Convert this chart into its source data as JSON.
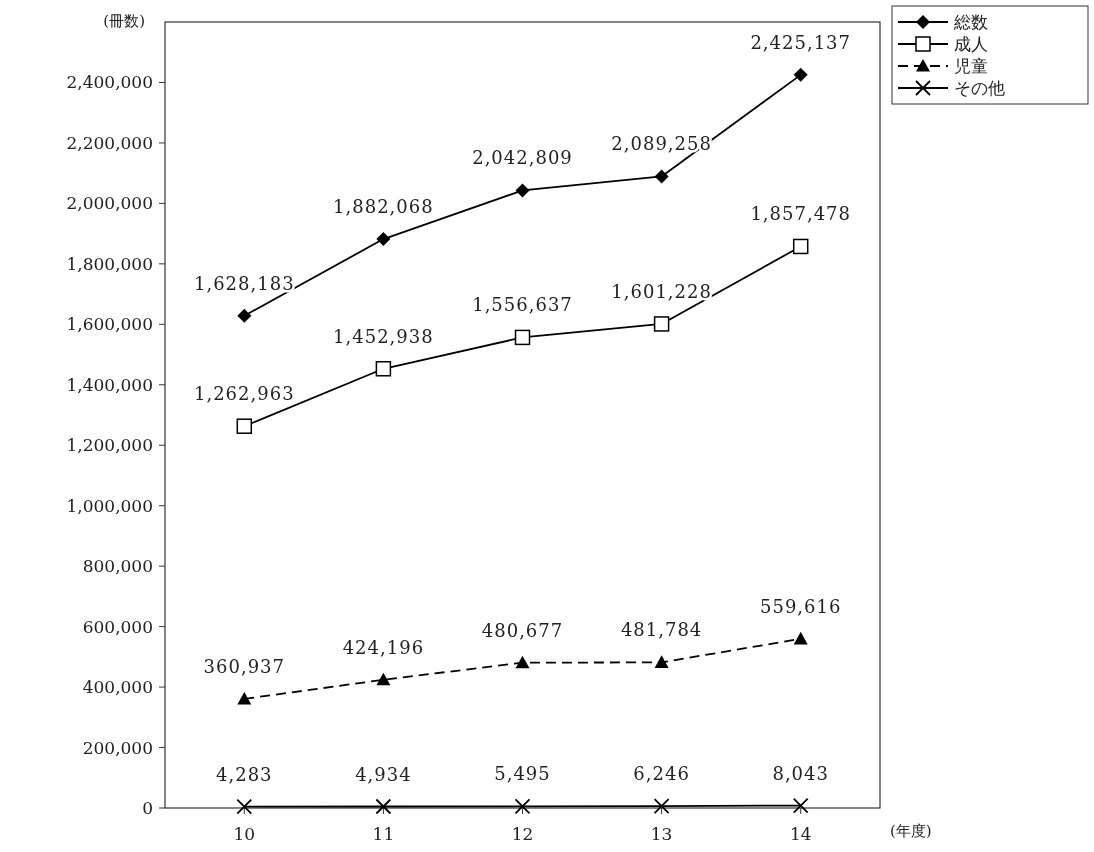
{
  "chart_data": {
    "type": "line",
    "ylabel": "(冊数)",
    "xlabel": "(年度)",
    "categories": [
      "10",
      "11",
      "12",
      "13",
      "14"
    ],
    "ylim": [
      0,
      2600000
    ],
    "yticks": [
      {
        "value": 0,
        "label": "0"
      },
      {
        "value": 200000,
        "label": "200,000"
      },
      {
        "value": 400000,
        "label": "400,000"
      },
      {
        "value": 600000,
        "label": "600,000"
      },
      {
        "value": 800000,
        "label": "800,000"
      },
      {
        "value": 1000000,
        "label": "1,000,000"
      },
      {
        "value": 1200000,
        "label": "1,200,000"
      },
      {
        "value": 1400000,
        "label": "1,400,000"
      },
      {
        "value": 1600000,
        "label": "1,600,000"
      },
      {
        "value": 1800000,
        "label": "1,800,000"
      },
      {
        "value": 2000000,
        "label": "2,000,000"
      },
      {
        "value": 2200000,
        "label": "2,200,000"
      },
      {
        "value": 2400000,
        "label": "2,400,000"
      }
    ],
    "legend": "top right",
    "series": [
      {
        "name": "総数",
        "color": "#000000",
        "marker": "diamond",
        "line_style": "solid",
        "values": [
          1628183,
          1882068,
          2042809,
          2089258,
          2425137
        ],
        "value_labels": [
          "1,628,183",
          "1,882,068",
          "2,042,809",
          "2,089,258",
          "2,425,137"
        ]
      },
      {
        "name": "成人",
        "color": "#000000",
        "marker": "square",
        "line_style": "solid",
        "values": [
          1262963,
          1452938,
          1556637,
          1601228,
          1857478
        ],
        "value_labels": [
          "1,262,963",
          "1,452,938",
          "1,556,637",
          "1,601,228",
          "1,857,478"
        ]
      },
      {
        "name": "児童",
        "color": "#000000",
        "marker": "triangle",
        "line_style": "dashed",
        "values": [
          360937,
          424196,
          480677,
          481784,
          559616
        ],
        "value_labels": [
          "360,937",
          "424,196",
          "480,677",
          "481,784",
          "559,616"
        ]
      },
      {
        "name": "その他",
        "color": "#000000",
        "marker": "cross",
        "line_style": "solid",
        "values": [
          4283,
          4934,
          5495,
          6246,
          8043
        ],
        "value_labels": [
          "4,283",
          "4,934",
          "5,495",
          "6,246",
          "8,043"
        ]
      }
    ]
  }
}
